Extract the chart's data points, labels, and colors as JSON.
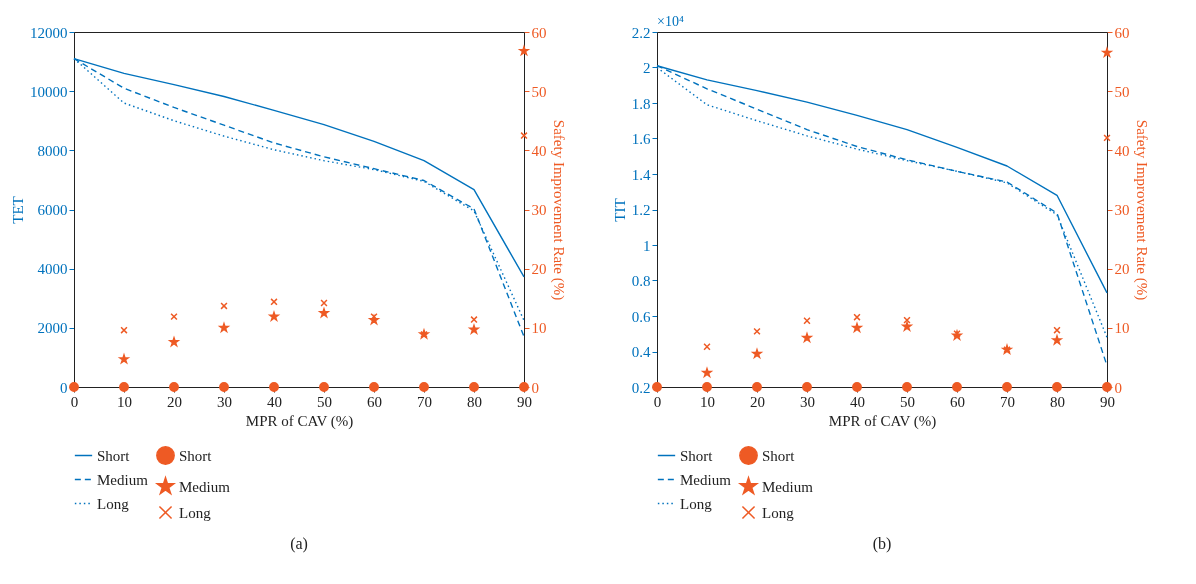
{
  "chart_data": [
    {
      "type": "line",
      "title": "(a)",
      "xlabel": "MPR of CAV (%)",
      "ylabel": "TET",
      "y2label": "Safety Improvement Rate (%)",
      "x": [
        0,
        10,
        20,
        30,
        40,
        50,
        60,
        70,
        80,
        90
      ],
      "xlim": [
        0,
        90
      ],
      "xticks": [
        0,
        10,
        20,
        30,
        40,
        50,
        60,
        70,
        80,
        90
      ],
      "ylim": [
        0,
        12000
      ],
      "yticks": [
        0,
        2000,
        4000,
        6000,
        8000,
        10000,
        12000
      ],
      "y2lim": [
        0,
        60
      ],
      "y2ticks": [
        0,
        10,
        20,
        30,
        40,
        50,
        60
      ],
      "legend": "bottom",
      "series": [
        {
          "name": "Short",
          "type": "line",
          "color": "#0072bd",
          "line_style": "solid",
          "values": [
            11100,
            10600,
            10220,
            9820,
            9350,
            8870,
            8300,
            7650,
            6670,
            3720
          ]
        },
        {
          "name": "Medium",
          "type": "line",
          "color": "#0072bd",
          "line_style": "dashed",
          "values": [
            11100,
            10100,
            9450,
            8850,
            8250,
            7780,
            7380,
            6980,
            6020,
            1700
          ]
        },
        {
          "name": "Long",
          "type": "line",
          "color": "#0072bd",
          "line_style": "dotted",
          "values": [
            11100,
            9600,
            9000,
            8480,
            8020,
            7650,
            7350,
            6950,
            5950,
            2250
          ]
        },
        {
          "name": "Short",
          "type": "scatter",
          "axis": "y2",
          "marker": "circle",
          "color": "#ee5a24",
          "values": [
            0,
            0,
            0,
            0,
            0,
            0,
            0,
            0,
            0,
            0
          ]
        },
        {
          "name": "Medium",
          "type": "scatter",
          "axis": "y2",
          "marker": "star",
          "color": "#ee5a24",
          "values": [
            null,
            4.7,
            7.6,
            10,
            11.9,
            12.5,
            11.3,
            8.9,
            9.7,
            56.8
          ]
        },
        {
          "name": "Long",
          "type": "scatter",
          "axis": "y2",
          "marker": "cross",
          "color": "#ee5a24",
          "values": [
            null,
            9.6,
            11.9,
            13.7,
            14.4,
            14.2,
            11.9,
            8.9,
            11.4,
            42.5
          ]
        }
      ]
    },
    {
      "type": "line",
      "title": "(b)",
      "xlabel": "MPR of CAV (%)",
      "ylabel": "TIT",
      "y2label": "Safety Improvement Rate (%)",
      "annotations": [
        "×10⁴"
      ],
      "x": [
        0,
        10,
        20,
        30,
        40,
        50,
        60,
        70,
        80,
        90
      ],
      "xlim": [
        0,
        90
      ],
      "xticks": [
        0,
        10,
        20,
        30,
        40,
        50,
        60,
        70,
        80,
        90
      ],
      "ylim": [
        0.2,
        2.2
      ],
      "yticks": [
        0.2,
        0.4,
        0.6,
        0.8,
        1,
        1.2,
        1.4,
        1.6,
        1.8,
        2,
        2.2
      ],
      "y2lim": [
        0,
        60
      ],
      "y2ticks": [
        0,
        10,
        20,
        30,
        40,
        50,
        60
      ],
      "legend": "bottom",
      "series": [
        {
          "name": "Short",
          "type": "line",
          "color": "#0072bd",
          "line_style": "solid",
          "values": [
            2.01,
            1.93,
            1.87,
            1.805,
            1.73,
            1.65,
            1.55,
            1.445,
            1.28,
            0.73
          ]
        },
        {
          "name": "Medium",
          "type": "line",
          "color": "#0072bd",
          "line_style": "dashed",
          "values": [
            2.01,
            1.88,
            1.765,
            1.65,
            1.555,
            1.48,
            1.415,
            1.355,
            1.18,
            0.32
          ]
        },
        {
          "name": "Long",
          "type": "line",
          "color": "#0072bd",
          "line_style": "dotted",
          "values": [
            2.0,
            1.79,
            1.7,
            1.615,
            1.54,
            1.475,
            1.415,
            1.35,
            1.17,
            0.48
          ]
        },
        {
          "name": "Short",
          "type": "scatter",
          "axis": "y2",
          "marker": "circle",
          "color": "#ee5a24",
          "values": [
            0,
            0,
            0,
            0,
            0,
            0,
            0,
            0,
            0,
            0
          ]
        },
        {
          "name": "Medium",
          "type": "scatter",
          "axis": "y2",
          "marker": "star",
          "color": "#ee5a24",
          "values": [
            null,
            2.4,
            5.6,
            8.3,
            10,
            10.2,
            8.7,
            6.3,
            7.9,
            56.5
          ]
        },
        {
          "name": "Long",
          "type": "scatter",
          "axis": "y2",
          "marker": "cross",
          "color": "#ee5a24",
          "values": [
            null,
            6.8,
            9.4,
            11.2,
            11.8,
            11.3,
            9,
            6.3,
            9.6,
            42.1
          ]
        }
      ]
    }
  ]
}
